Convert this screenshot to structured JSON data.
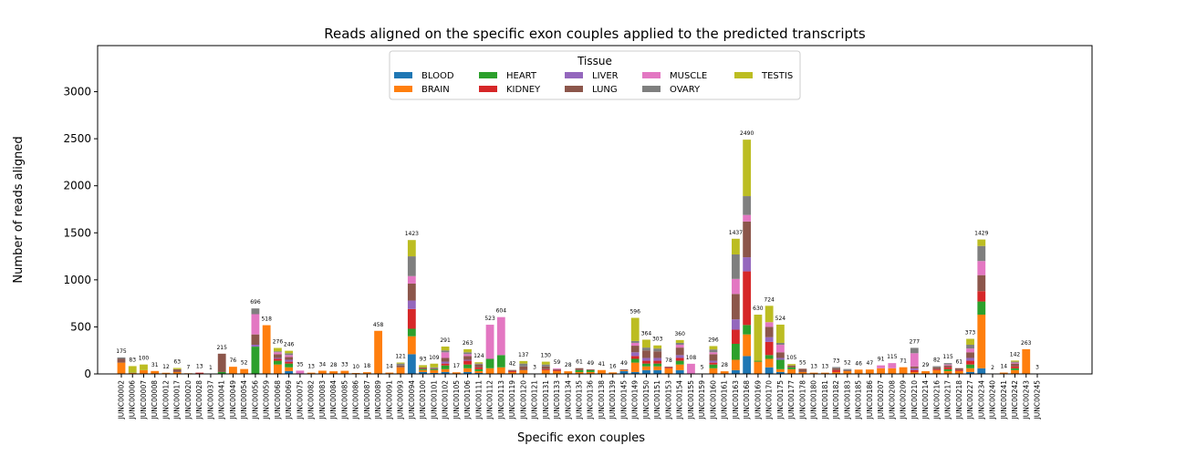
{
  "chart_data": {
    "type": "stacked_bar",
    "title": "Reads aligned on the specific exon couples applied to the predicted transcripts",
    "x_label": "Specific exon couples",
    "y_label": "Number of reads aligned",
    "legend_title": "Tissue",
    "legend_loc": "upper center",
    "ylim": [
      0,
      3490
    ],
    "yticks": [
      0,
      500,
      1000,
      1500,
      2000,
      2500,
      3000
    ],
    "categories": [
      "JUNC00002",
      "JUNC00006",
      "JUNC00007",
      "JUNC00008",
      "JUNC00012",
      "JUNC00017",
      "JUNC00020",
      "JUNC00028",
      "JUNC00037",
      "JUNC00041",
      "JUNC00049",
      "JUNC00054",
      "JUNC00056",
      "JUNC00059",
      "JUNC00068",
      "JUNC00069",
      "JUNC00075",
      "JUNC00082",
      "JUNC00083",
      "JUNC00084",
      "JUNC00085",
      "JUNC00086",
      "JUNC00087",
      "JUNC00089",
      "JUNC00091",
      "JUNC00093",
      "JUNC00094",
      "JUNC00100",
      "JUNC00101",
      "JUNC00102",
      "JUNC00105",
      "JUNC00106",
      "JUNC00111",
      "JUNC00112",
      "JUNC00113",
      "JUNC00119",
      "JUNC00120",
      "JUNC00121",
      "JUNC00131",
      "JUNC00133",
      "JUNC00134",
      "JUNC00135",
      "JUNC00136",
      "JUNC00138",
      "JUNC00139",
      "JUNC00145",
      "JUNC00149",
      "JUNC00150",
      "JUNC00151",
      "JUNC00153",
      "JUNC00154",
      "JUNC00155",
      "JUNC00159",
      "JUNC00160",
      "JUNC00161",
      "JUNC00163",
      "JUNC00168",
      "JUNC00169",
      "JUNC00170",
      "JUNC00175",
      "JUNC00177",
      "JUNC00178",
      "JUNC00180",
      "JUNC00181",
      "JUNC00182",
      "JUNC00183",
      "JUNC00185",
      "JUNC00186",
      "JUNC00207",
      "JUNC00208",
      "JUNC00209",
      "JUNC00210",
      "JUNC00214",
      "JUNC00216",
      "JUNC00217",
      "JUNC00218",
      "JUNC00227",
      "JUNC00234",
      "JUNC00240",
      "JUNC00241",
      "JUNC00242",
      "JUNC00243",
      "JUNC00245"
    ],
    "totals": [
      175,
      83,
      100,
      31,
      12,
      63,
      7,
      13,
      1,
      215,
      76,
      52,
      696,
      518,
      276,
      246,
      35,
      13,
      34,
      28,
      33,
      10,
      18,
      458,
      14,
      121,
      1423,
      93,
      109,
      291,
      17,
      263,
      124,
      523,
      604,
      42,
      137,
      3,
      130,
      59,
      28,
      61,
      49,
      41,
      16,
      49,
      596,
      364,
      303,
      78,
      360,
      108,
      5,
      296,
      28,
      1437,
      2490,
      630,
      724,
      524,
      105,
      55,
      13,
      13,
      73,
      52,
      46,
      47,
      91,
      115,
      71,
      277,
      29,
      82,
      115,
      61,
      373,
      1429,
      2,
      14,
      142,
      263,
      3
    ],
    "series": [
      {
        "name": "BLOOD",
        "color": "#1f77b4",
        "values": [
          0,
          0,
          0,
          0,
          0,
          0,
          0,
          0,
          0,
          0,
          0,
          0,
          0,
          0,
          0,
          30,
          0,
          0,
          0,
          0,
          0,
          0,
          0,
          0,
          0,
          0,
          210,
          20,
          10,
          20,
          0,
          20,
          10,
          0,
          0,
          0,
          0,
          0,
          0,
          0,
          0,
          0,
          0,
          0,
          0,
          30,
          20,
          40,
          40,
          0,
          40,
          0,
          0,
          0,
          0,
          40,
          190,
          0,
          70,
          20,
          0,
          0,
          0,
          0,
          0,
          0,
          0,
          0,
          0,
          0,
          0,
          0,
          0,
          0,
          0,
          0,
          20,
          60,
          0,
          0,
          0,
          0,
          0
        ]
      },
      {
        "name": "BRAIN",
        "color": "#ff7f0e",
        "values": [
          120,
          10,
          40,
          31,
          12,
          20,
          7,
          5,
          1,
          0,
          76,
          52,
          0,
          518,
          100,
          40,
          0,
          13,
          34,
          28,
          33,
          10,
          18,
          458,
          14,
          70,
          190,
          20,
          30,
          30,
          17,
          40,
          20,
          60,
          70,
          20,
          40,
          3,
          40,
          30,
          28,
          20,
          20,
          41,
          16,
          10,
          100,
          40,
          40,
          60,
          60,
          0,
          5,
          60,
          28,
          110,
          230,
          130,
          90,
          30,
          50,
          20,
          13,
          13,
          20,
          30,
          46,
          47,
          60,
          60,
          71,
          20,
          29,
          40,
          30,
          30,
          40,
          570,
          2,
          14,
          40,
          263,
          3
        ]
      },
      {
        "name": "HEART",
        "color": "#2ca02c",
        "values": [
          0,
          0,
          0,
          0,
          0,
          0,
          0,
          0,
          0,
          20,
          0,
          0,
          290,
          0,
          40,
          40,
          0,
          0,
          0,
          0,
          0,
          0,
          0,
          0,
          0,
          0,
          80,
          10,
          10,
          40,
          0,
          40,
          20,
          100,
          130,
          0,
          0,
          0,
          0,
          0,
          0,
          20,
          20,
          0,
          0,
          0,
          40,
          30,
          30,
          0,
          40,
          0,
          0,
          40,
          0,
          170,
          100,
          10,
          40,
          100,
          20,
          0,
          0,
          0,
          0,
          0,
          0,
          0,
          0,
          0,
          0,
          0,
          0,
          0,
          20,
          0,
          40,
          140,
          0,
          0,
          20,
          0,
          0
        ]
      },
      {
        "name": "KIDNEY",
        "color": "#d62728",
        "values": [
          0,
          0,
          0,
          0,
          0,
          0,
          0,
          8,
          0,
          0,
          0,
          0,
          0,
          0,
          20,
          20,
          0,
          0,
          0,
          0,
          0,
          0,
          0,
          0,
          0,
          0,
          210,
          0,
          0,
          20,
          0,
          40,
          20,
          0,
          0,
          10,
          0,
          0,
          10,
          10,
          0,
          0,
          0,
          0,
          0,
          0,
          30,
          30,
          30,
          10,
          30,
          0,
          0,
          20,
          0,
          150,
          570,
          0,
          140,
          0,
          0,
          0,
          0,
          0,
          20,
          0,
          0,
          0,
          0,
          0,
          0,
          20,
          0,
          10,
          20,
          10,
          40,
          110,
          0,
          0,
          20,
          0,
          0
        ]
      },
      {
        "name": "LIVER",
        "color": "#9467bd",
        "values": [
          0,
          0,
          0,
          0,
          0,
          0,
          0,
          0,
          0,
          0,
          0,
          0,
          20,
          0,
          10,
          20,
          0,
          0,
          0,
          0,
          0,
          0,
          0,
          0,
          0,
          0,
          90,
          0,
          0,
          20,
          0,
          10,
          0,
          0,
          0,
          0,
          0,
          0,
          0,
          0,
          0,
          0,
          0,
          0,
          0,
          0,
          40,
          30,
          30,
          0,
          30,
          0,
          0,
          20,
          0,
          110,
          150,
          0,
          50,
          20,
          0,
          0,
          0,
          0,
          0,
          0,
          0,
          0,
          0,
          0,
          0,
          20,
          0,
          0,
          0,
          0,
          30,
          0,
          0,
          0,
          0,
          0,
          0
        ]
      },
      {
        "name": "LUNG",
        "color": "#8c564b",
        "values": [
          40,
          0,
          0,
          0,
          0,
          30,
          0,
          0,
          0,
          195,
          0,
          0,
          110,
          0,
          40,
          30,
          0,
          0,
          0,
          0,
          0,
          0,
          0,
          0,
          0,
          20,
          180,
          20,
          10,
          40,
          0,
          40,
          30,
          0,
          0,
          12,
          40,
          0,
          30,
          10,
          0,
          21,
          9,
          0,
          0,
          9,
          70,
          80,
          70,
          8,
          80,
          0,
          0,
          70,
          0,
          270,
          380,
          0,
          110,
          60,
          20,
          35,
          0,
          0,
          20,
          10,
          0,
          0,
          0,
          0,
          0,
          20,
          0,
          20,
          20,
          21,
          60,
          170,
          0,
          0,
          30,
          0,
          0
        ]
      },
      {
        "name": "MUSCLE",
        "color": "#e377c2",
        "values": [
          0,
          0,
          0,
          0,
          0,
          0,
          0,
          0,
          0,
          0,
          0,
          0,
          215,
          0,
          20,
          20,
          35,
          0,
          0,
          0,
          0,
          0,
          0,
          0,
          0,
          0,
          80,
          0,
          0,
          60,
          0,
          20,
          0,
          363,
          404,
          0,
          0,
          0,
          0,
          9,
          0,
          0,
          0,
          0,
          0,
          0,
          30,
          0,
          0,
          0,
          30,
          108,
          0,
          20,
          0,
          160,
          70,
          0,
          50,
          80,
          0,
          0,
          0,
          0,
          0,
          0,
          0,
          0,
          31,
          55,
          0,
          140,
          0,
          0,
          10,
          0,
          40,
          150,
          0,
          0,
          10,
          0,
          0
        ]
      },
      {
        "name": "OVARY",
        "color": "#7f7f7f",
        "values": [
          15,
          3,
          0,
          0,
          0,
          0,
          0,
          0,
          0,
          0,
          0,
          0,
          61,
          0,
          10,
          20,
          0,
          0,
          0,
          0,
          0,
          0,
          0,
          0,
          0,
          20,
          210,
          0,
          10,
          20,
          0,
          20,
          10,
          0,
          0,
          0,
          30,
          0,
          20,
          0,
          0,
          0,
          0,
          0,
          0,
          0,
          20,
          30,
          30,
          0,
          20,
          0,
          0,
          30,
          0,
          260,
          200,
          0,
          0,
          20,
          0,
          0,
          0,
          0,
          13,
          12,
          0,
          0,
          0,
          0,
          0,
          57,
          0,
          12,
          15,
          0,
          40,
          160,
          0,
          0,
          10,
          0,
          0
        ]
      },
      {
        "name": "TESTIS",
        "color": "#bcbd22",
        "values": [
          0,
          70,
          60,
          0,
          0,
          13,
          0,
          0,
          0,
          0,
          0,
          0,
          0,
          0,
          36,
          26,
          0,
          0,
          0,
          0,
          0,
          0,
          0,
          0,
          0,
          11,
          173,
          23,
          39,
          41,
          0,
          33,
          14,
          0,
          0,
          0,
          27,
          0,
          30,
          0,
          0,
          0,
          0,
          0,
          0,
          0,
          246,
          84,
          33,
          0,
          30,
          0,
          0,
          36,
          0,
          167,
          600,
          490,
          174,
          194,
          15,
          0,
          0,
          0,
          0,
          0,
          0,
          0,
          0,
          0,
          0,
          0,
          0,
          0,
          0,
          0,
          63,
          69,
          0,
          0,
          12,
          0,
          0
        ]
      }
    ]
  }
}
